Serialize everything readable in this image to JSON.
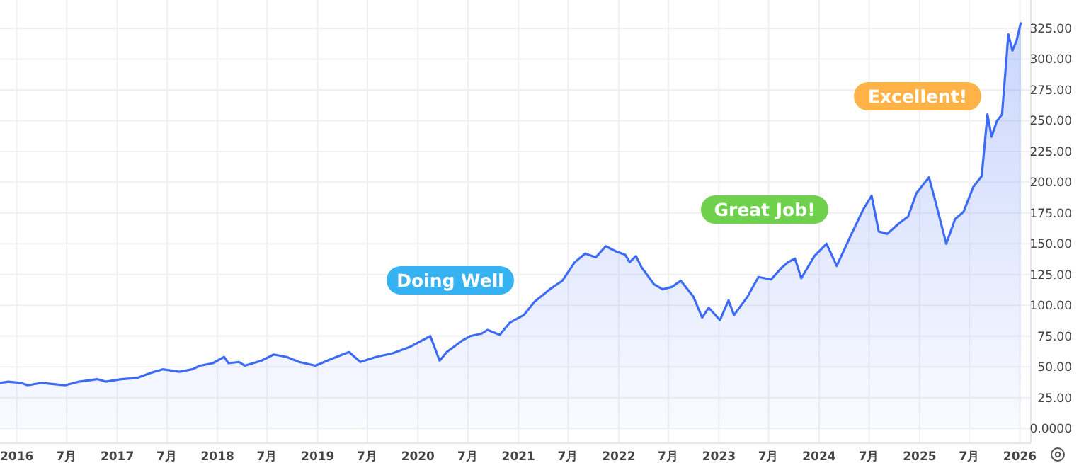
{
  "chart_data": {
    "type": "area",
    "color": "#3d6bf5",
    "grid": true,
    "marker": "none",
    "line_style": "solid",
    "xlim": [
      "2015-11-01",
      "2026-02-10"
    ],
    "xticks": [
      {
        "value": "2016-01-01",
        "label": "2016"
      },
      {
        "value": "2016-07-01",
        "label": "7月"
      },
      {
        "value": "2017-01-01",
        "label": "2017"
      },
      {
        "value": "2017-07-01",
        "label": "7月"
      },
      {
        "value": "2018-01-01",
        "label": "2018"
      },
      {
        "value": "2018-07-01",
        "label": "7月"
      },
      {
        "value": "2019-01-01",
        "label": "2019"
      },
      {
        "value": "2019-07-01",
        "label": "7月"
      },
      {
        "value": "2020-01-01",
        "label": "2020"
      },
      {
        "value": "2020-07-01",
        "label": "7月"
      },
      {
        "value": "2021-01-01",
        "label": "2021"
      },
      {
        "value": "2021-07-01",
        "label": "7月"
      },
      {
        "value": "2022-01-01",
        "label": "2022"
      },
      {
        "value": "2022-07-01",
        "label": "7月"
      },
      {
        "value": "2023-01-01",
        "label": "2023"
      },
      {
        "value": "2023-07-01",
        "label": "7月"
      },
      {
        "value": "2024-01-01",
        "label": "2024"
      },
      {
        "value": "2024-07-01",
        "label": "7月"
      },
      {
        "value": "2025-01-01",
        "label": "2025"
      },
      {
        "value": "2025-07-01",
        "label": "7月"
      },
      {
        "value": "2026-01-01",
        "label": "2026"
      }
    ],
    "ylim": [
      -12,
      348
    ],
    "yticks": [
      {
        "value": 0,
        "label": "0.0000"
      },
      {
        "value": 25,
        "label": "25.00"
      },
      {
        "value": 50,
        "label": "50.00"
      },
      {
        "value": 75,
        "label": "75.00"
      },
      {
        "value": 100,
        "label": "100.00"
      },
      {
        "value": 125,
        "label": "125.00"
      },
      {
        "value": 150,
        "label": "150.00"
      },
      {
        "value": 175,
        "label": "175.00"
      },
      {
        "value": 200,
        "label": "200.00"
      },
      {
        "value": 225,
        "label": "225.00"
      },
      {
        "value": 250,
        "label": "250.00"
      },
      {
        "value": 275,
        "label": "275.00"
      },
      {
        "value": 300,
        "label": "300.00"
      },
      {
        "value": 325,
        "label": "325.00"
      }
    ],
    "x": [
      "2015-11-01",
      "2015-12-01",
      "2016-01-15",
      "2016-02-10",
      "2016-04-01",
      "2016-05-15",
      "2016-06-25",
      "2016-08-15",
      "2016-10-20",
      "2016-11-20",
      "2017-01-15",
      "2017-03-15",
      "2017-05-01",
      "2017-06-15",
      "2017-08-15",
      "2017-10-01",
      "2017-10-30",
      "2017-12-15",
      "2018-01-25",
      "2018-02-10",
      "2018-03-20",
      "2018-04-10",
      "2018-06-10",
      "2018-07-25",
      "2018-09-10",
      "2018-10-25",
      "2018-12-24",
      "2019-02-15",
      "2019-04-25",
      "2019-06-05",
      "2019-08-01",
      "2019-10-01",
      "2019-12-01",
      "2020-02-15",
      "2020-03-20",
      "2020-04-15",
      "2020-06-08",
      "2020-07-10",
      "2020-08-20",
      "2020-09-10",
      "2020-10-25",
      "2020-12-01",
      "2021-01-20",
      "2021-03-01",
      "2021-04-25",
      "2021-06-10",
      "2021-07-25",
      "2021-09-01",
      "2021-10-10",
      "2021-11-15",
      "2021-12-20",
      "2022-01-25",
      "2022-02-10",
      "2022-03-05",
      "2022-03-25",
      "2022-05-10",
      "2022-06-10",
      "2022-07-15",
      "2022-08-15",
      "2022-09-30",
      "2022-11-01",
      "2022-11-25",
      "2023-01-05",
      "2023-02-05",
      "2023-02-25",
      "2023-04-15",
      "2023-05-25",
      "2023-07-10",
      "2023-08-15",
      "2023-09-10",
      "2023-10-05",
      "2023-10-28",
      "2023-12-15",
      "2024-01-28",
      "2024-03-05",
      "2024-04-28",
      "2024-06-10",
      "2024-07-10",
      "2024-08-05",
      "2024-09-05",
      "2024-10-20",
      "2024-11-20",
      "2024-12-20",
      "2025-02-04",
      "2025-03-01",
      "2025-04-08",
      "2025-05-10",
      "2025-06-10",
      "2025-07-15",
      "2025-08-15",
      "2025-09-05",
      "2025-09-20",
      "2025-10-10",
      "2025-10-28",
      "2025-11-20",
      "2025-12-05",
      "2025-12-20",
      "2026-01-05"
    ],
    "values": [
      37,
      38,
      37,
      35,
      37,
      36,
      35,
      38,
      40,
      38,
      40,
      41,
      45,
      48,
      46,
      48,
      51,
      53,
      58,
      53,
      54,
      51,
      55,
      60,
      58,
      54,
      51,
      56,
      62,
      54,
      58,
      61,
      66,
      75,
      55,
      62,
      71,
      75,
      77,
      80,
      76,
      86,
      92,
      103,
      113,
      120,
      135,
      142,
      139,
      148,
      144,
      141,
      135,
      140,
      131,
      117,
      113,
      115,
      120,
      107,
      90,
      98,
      88,
      104,
      92,
      107,
      123,
      121,
      130,
      135,
      138,
      122,
      140,
      150,
      132,
      158,
      178,
      189,
      160,
      158,
      167,
      172,
      191,
      204,
      183,
      150,
      170,
      176,
      196,
      205,
      255,
      237,
      250,
      255,
      320,
      307,
      315,
      330
    ],
    "annotations": [
      "Doing Well",
      "Great Job!",
      "Excellent!"
    ]
  }
}
